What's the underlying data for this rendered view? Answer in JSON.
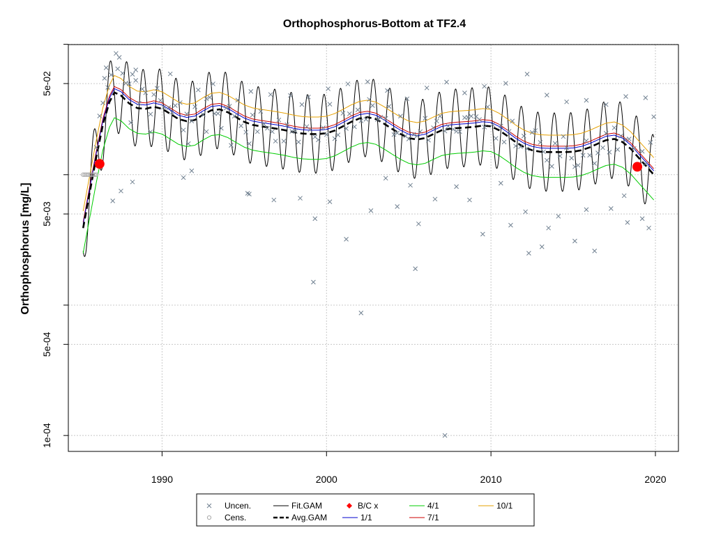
{
  "chart_data": {
    "type": "scatter",
    "title": "Orthophosphorus-Bottom at TF2.4",
    "ylabel": "Orthophosphorus [mg/L]",
    "xlabel": "",
    "x_range": [
      1984.3,
      2021.4
    ],
    "y_range": [
      7.55e-05,
      0.0995
    ],
    "y_scale": "log",
    "x_ticks": [
      1990,
      2000,
      2010,
      2020
    ],
    "x_tick_labels": [
      "1990",
      "2000",
      "2010",
      "2020"
    ],
    "y_ticks": [
      0.0001,
      0.0005,
      0.005,
      0.05
    ],
    "y_tick_labels": [
      "1e-04",
      "5e-04",
      "5e-03",
      "5e-02"
    ],
    "y_grid": [
      0.0001,
      0.0005,
      0.001,
      0.005,
      0.01,
      0.05,
      0.1
    ],
    "grid": true,
    "legend_position": "bottom",
    "legend": [
      {
        "label": "Uncen.",
        "kind": "x",
        "color": "#708090"
      },
      {
        "label": "Cens.",
        "kind": "circle",
        "color": "#a9a9a9"
      },
      {
        "label": "Fit.GAM",
        "kind": "line",
        "color": "#000000"
      },
      {
        "label": "Avg.GAM",
        "kind": "dash",
        "color": "#000000"
      },
      {
        "label": "B/C x",
        "kind": "diamond",
        "color": "#ff0000"
      },
      {
        "label": "1/1",
        "kind": "line",
        "color": "#0000cd"
      },
      {
        "label": "4/1",
        "kind": "line",
        "color": "#00cc00"
      },
      {
        "label": "7/1",
        "kind": "line",
        "color": "#cc0000"
      },
      {
        "label": "10/1",
        "kind": "line",
        "color": "#e6a000"
      }
    ],
    "avg_gam": {
      "x": [
        1985.2,
        1985.6,
        1986.0,
        1986.4,
        1986.8,
        1987.1,
        1987.5,
        1988.0,
        1988.5,
        1989.0,
        1989.5,
        1990.0,
        1990.5,
        1991.0,
        1991.5,
        1992.0,
        1992.5,
        1993.0,
        1993.5,
        1994.0,
        1994.5,
        1995.0,
        1995.5,
        1996.0,
        1996.5,
        1997.0,
        1997.5,
        1998.0,
        1998.5,
        1999.0,
        1999.5,
        2000.0,
        2000.5,
        2001.0,
        2001.5,
        2002.0,
        2002.5,
        2003.0,
        2003.5,
        2004.0,
        2004.5,
        2005.0,
        2005.5,
        2006.0,
        2006.5,
        2007.0,
        2007.5,
        2008.0,
        2008.5,
        2009.0,
        2009.5,
        2010.0,
        2010.5,
        2011.0,
        2011.5,
        2012.0,
        2012.5,
        2013.0,
        2013.5,
        2014.0,
        2014.5,
        2015.0,
        2015.5,
        2016.0,
        2016.5,
        2017.0,
        2017.5,
        2018.0,
        2018.5,
        2019.0,
        2019.5,
        2019.9
      ],
      "y": [
        0.0039,
        0.0073,
        0.0136,
        0.0241,
        0.0361,
        0.0427,
        0.0405,
        0.0352,
        0.0324,
        0.032,
        0.0332,
        0.032,
        0.0293,
        0.0267,
        0.0257,
        0.0263,
        0.0289,
        0.0312,
        0.0317,
        0.0301,
        0.0276,
        0.0254,
        0.0241,
        0.0235,
        0.023,
        0.0225,
        0.0219,
        0.0212,
        0.0207,
        0.0205,
        0.0205,
        0.0208,
        0.0218,
        0.0235,
        0.0254,
        0.027,
        0.0276,
        0.0267,
        0.0246,
        0.0224,
        0.0205,
        0.0191,
        0.0186,
        0.0191,
        0.0205,
        0.0219,
        0.0225,
        0.0228,
        0.023,
        0.0233,
        0.0238,
        0.0235,
        0.0219,
        0.0198,
        0.0178,
        0.0163,
        0.0154,
        0.015,
        0.0149,
        0.0149,
        0.0149,
        0.015,
        0.0154,
        0.0162,
        0.0173,
        0.0184,
        0.0188,
        0.0178,
        0.0158,
        0.0134,
        0.0114,
        0.01
      ]
    },
    "fit_gam_amplitude_factor": 2.0,
    "seasonal_offsets": {
      "jan1": 1.07,
      "apr1": 0.64,
      "jul1": 1.11,
      "oct1": 1.35
    },
    "uncensored_points": [
      [
        1986.0,
        0.0162
      ],
      [
        1986.2,
        0.0282
      ],
      [
        1986.4,
        0.0355
      ],
      [
        1986.5,
        0.0549
      ],
      [
        1986.7,
        0.0467
      ],
      [
        1986.9,
        0.0583
      ],
      [
        1987.2,
        0.0851
      ],
      [
        1987.4,
        0.0794
      ],
      [
        1987.6,
        0.0599
      ],
      [
        1987.8,
        0.0504
      ],
      [
        1988.0,
        0.0498
      ],
      [
        1988.2,
        0.0589
      ],
      [
        1988.4,
        0.0529
      ],
      [
        1988.6,
        0.0353
      ],
      [
        1988.8,
        0.0454
      ],
      [
        1989.0,
        0.0425
      ],
      [
        1989.3,
        0.0291
      ],
      [
        1989.5,
        0.0412
      ],
      [
        1989.7,
        0.046
      ],
      [
        1989.9,
        0.0371
      ],
      [
        1990.1,
        0.0331
      ],
      [
        1990.4,
        0.0327
      ],
      [
        1990.6,
        0.0301
      ],
      [
        1990.8,
        0.0339
      ],
      [
        1991.1,
        0.0357
      ],
      [
        1991.3,
        0.022
      ],
      [
        1991.5,
        0.0292
      ],
      [
        1991.8,
        0.0258
      ],
      [
        1992.0,
        0.0332
      ],
      [
        1992.2,
        0.0447
      ],
      [
        1992.5,
        0.0289
      ],
      [
        1992.7,
        0.0382
      ],
      [
        1992.9,
        0.0392
      ],
      [
        1993.2,
        0.0294
      ],
      [
        1993.4,
        0.0295
      ],
      [
        1993.6,
        0.0227
      ],
      [
        1993.9,
        0.0325
      ],
      [
        1994.1,
        0.0335
      ],
      [
        1994.4,
        0.0281
      ],
      [
        1994.6,
        0.0373
      ],
      [
        1994.8,
        0.0237
      ],
      [
        1995.1,
        0.0212
      ],
      [
        1995.3,
        0.0173
      ],
      [
        1995.5,
        0.0287
      ],
      [
        1995.8,
        0.0214
      ],
      [
        1996.0,
        0.0306
      ],
      [
        1996.2,
        0.0244
      ],
      [
        1996.4,
        0.0227
      ],
      [
        1996.7,
        0.0214
      ],
      [
        1996.9,
        0.0181
      ],
      [
        1997.1,
        0.0263
      ],
      [
        1997.4,
        0.0181
      ],
      [
        1997.6,
        0.0242
      ],
      [
        1997.9,
        0.0215
      ],
      [
        1998.1,
        0.0215
      ],
      [
        1998.3,
        0.0178
      ],
      [
        1998.5,
        0.0345
      ],
      [
        1998.8,
        0.0234
      ],
      [
        1999.0,
        0.0221
      ],
      [
        1999.3,
        0.0195
      ],
      [
        1999.5,
        0.0185
      ],
      [
        1999.8,
        0.0229
      ],
      [
        2000.0,
        0.0203
      ],
      [
        2000.2,
        0.0347
      ],
      [
        2000.5,
        0.0189
      ],
      [
        2000.7,
        0.0202
      ],
      [
        2001.0,
        0.0296
      ],
      [
        2001.2,
        0.0226
      ],
      [
        2001.4,
        0.0293
      ],
      [
        2001.7,
        0.0233
      ],
      [
        2001.9,
        0.0314
      ],
      [
        2002.1,
        0.0259
      ],
      [
        2002.4,
        0.0266
      ],
      [
        2002.6,
        0.0378
      ],
      [
        2002.8,
        0.0339
      ],
      [
        2003.1,
        0.0265
      ],
      [
        2003.3,
        0.0276
      ],
      [
        2003.6,
        0.027
      ],
      [
        2003.8,
        0.0334
      ],
      [
        2004.1,
        0.0203
      ],
      [
        2004.3,
        0.0209
      ],
      [
        2004.5,
        0.0281
      ],
      [
        2004.8,
        0.0198
      ],
      [
        2005.0,
        0.0188
      ],
      [
        2005.3,
        0.0204
      ],
      [
        2005.5,
        0.0198
      ],
      [
        2005.7,
        0.0214
      ],
      [
        2006.0,
        0.0271
      ],
      [
        2006.2,
        0.0184
      ],
      [
        2006.5,
        0.0229
      ],
      [
        2006.7,
        0.0258
      ],
      [
        2006.9,
        0.0281
      ],
      [
        2007.2,
        0.0216
      ],
      [
        2007.4,
        0.0235
      ],
      [
        2007.7,
        0.0223
      ],
      [
        2007.9,
        0.0215
      ],
      [
        2008.1,
        0.0214
      ],
      [
        2008.4,
        0.0274
      ],
      [
        2008.6,
        0.0276
      ],
      [
        2008.8,
        0.0281
      ],
      [
        2009.1,
        0.0279
      ],
      [
        2009.3,
        0.0265
      ],
      [
        2009.6,
        0.0232
      ],
      [
        2009.8,
        0.0331
      ],
      [
        2010.1,
        0.0242
      ],
      [
        2010.3,
        0.019
      ],
      [
        2010.6,
        0.0236
      ],
      [
        2010.8,
        0.0178
      ],
      [
        2011.1,
        0.0215
      ],
      [
        2011.3,
        0.0258
      ],
      [
        2011.5,
        0.0166
      ],
      [
        2011.8,
        0.0164
      ],
      [
        2012.0,
        0.0198
      ],
      [
        2012.2,
        0.0158
      ],
      [
        2012.5,
        0.0211
      ],
      [
        2012.7,
        0.0218
      ],
      [
        2013.0,
        0.0177
      ],
      [
        2013.2,
        0.015
      ],
      [
        2013.4,
        0.0129
      ],
      [
        2013.7,
        0.0116
      ],
      [
        2013.9,
        0.0174
      ],
      [
        2014.2,
        0.0139
      ],
      [
        2014.4,
        0.0196
      ],
      [
        2014.6,
        0.0161
      ],
      [
        2014.9,
        0.0134
      ],
      [
        2015.1,
        0.0115
      ],
      [
        2015.3,
        0.0118
      ],
      [
        2015.6,
        0.0141
      ],
      [
        2015.8,
        0.0182
      ],
      [
        2016.0,
        0.0141
      ],
      [
        2016.3,
        0.0122
      ],
      [
        2016.5,
        0.0147
      ],
      [
        2016.8,
        0.0161
      ],
      [
        2017.0,
        0.0208
      ],
      [
        2017.2,
        0.0149
      ],
      [
        2017.5,
        0.0229
      ],
      [
        2017.7,
        0.0156
      ],
      [
        2017.9,
        0.0198
      ],
      [
        2018.2,
        0.0186
      ],
      [
        2018.4,
        0.0188
      ],
      [
        2018.7,
        0.0159
      ],
      [
        2019.0,
        0.0116
      ],
      [
        2019.2,
        0.0151
      ],
      [
        2019.4,
        0.0121
      ],
      [
        2019.7,
        0.0177
      ],
      [
        2019.9,
        0.0278
      ],
      [
        1986.6,
        0.0661
      ],
      [
        1987.3,
        0.0649
      ],
      [
        1988.1,
        0.0251
      ],
      [
        1988.4,
        0.0636
      ],
      [
        1989.3,
        0.0213
      ],
      [
        1990.5,
        0.0593
      ],
      [
        1991.6,
        0.0173
      ],
      [
        1992.7,
        0.0214
      ],
      [
        1993.1,
        0.0497
      ],
      [
        1994.2,
        0.0168
      ],
      [
        1995.4,
        0.0435
      ],
      [
        1996.6,
        0.0412
      ],
      [
        1997.8,
        0.0405
      ],
      [
        1998.9,
        0.0394
      ],
      [
        2000.1,
        0.0456
      ],
      [
        2001.3,
        0.0497
      ],
      [
        2002.5,
        0.0516
      ],
      [
        2003.7,
        0.0442
      ],
      [
        2004.9,
        0.0382
      ],
      [
        2006.1,
        0.0463
      ],
      [
        2007.3,
        0.0513
      ],
      [
        2008.4,
        0.0424
      ],
      [
        2009.6,
        0.0476
      ],
      [
        2010.9,
        0.0502
      ],
      [
        2012.2,
        0.0591
      ],
      [
        2013.4,
        0.0408
      ],
      [
        2014.6,
        0.0362
      ],
      [
        2015.8,
        0.0372
      ],
      [
        2017.0,
        0.0345
      ],
      [
        2018.2,
        0.0398
      ],
      [
        2019.4,
        0.0389
      ],
      [
        1987.0,
        0.0063
      ],
      [
        1987.5,
        0.0075
      ],
      [
        1988.2,
        0.0088
      ],
      [
        1991.3,
        0.0095
      ],
      [
        1991.8,
        0.0107
      ],
      [
        1995.2,
        0.0072
      ],
      [
        1995.3,
        0.0071
      ],
      [
        1996.8,
        0.0064
      ],
      [
        1998.4,
        0.0066
      ],
      [
        1999.3,
        0.0046
      ],
      [
        1999.2,
        0.0015
      ],
      [
        2000.2,
        0.0062
      ],
      [
        2001.2,
        0.0032
      ],
      [
        2002.1,
        0.00087
      ],
      [
        2002.7,
        0.0053
      ],
      [
        2003.6,
        0.0094
      ],
      [
        2004.3,
        0.0057
      ],
      [
        2005.1,
        0.0083
      ],
      [
        2005.4,
        0.0019
      ],
      [
        2005.6,
        0.0042
      ],
      [
        2006.6,
        0.0065
      ],
      [
        2007.2,
        0.0001
      ],
      [
        2007.9,
        0.0081
      ],
      [
        2008.7,
        0.0064
      ],
      [
        2009.5,
        0.0035
      ],
      [
        2010.6,
        0.0086
      ],
      [
        2011.2,
        0.0041
      ],
      [
        2012.1,
        0.0052
      ],
      [
        2012.3,
        0.0025
      ],
      [
        2013.1,
        0.0028
      ],
      [
        2013.5,
        0.0039
      ],
      [
        2014.1,
        0.0048
      ],
      [
        2015.1,
        0.0031
      ],
      [
        2015.8,
        0.0054
      ],
      [
        2016.3,
        0.0026
      ],
      [
        2017.3,
        0.0055
      ],
      [
        2018.1,
        0.0069
      ],
      [
        2018.3,
        0.0043
      ],
      [
        2019.2,
        0.0046
      ],
      [
        2019.6,
        0.0039
      ]
    ],
    "censored_points": {
      "x": [
        1985.2,
        1985.3,
        1985.4,
        1985.5,
        1985.6,
        1985.7,
        1985.8,
        1985.9,
        1986.0
      ],
      "y": 0.01
    },
    "bc_points": [
      [
        1986.2,
        0.0121
      ],
      [
        2018.9,
        0.0115
      ]
    ]
  }
}
